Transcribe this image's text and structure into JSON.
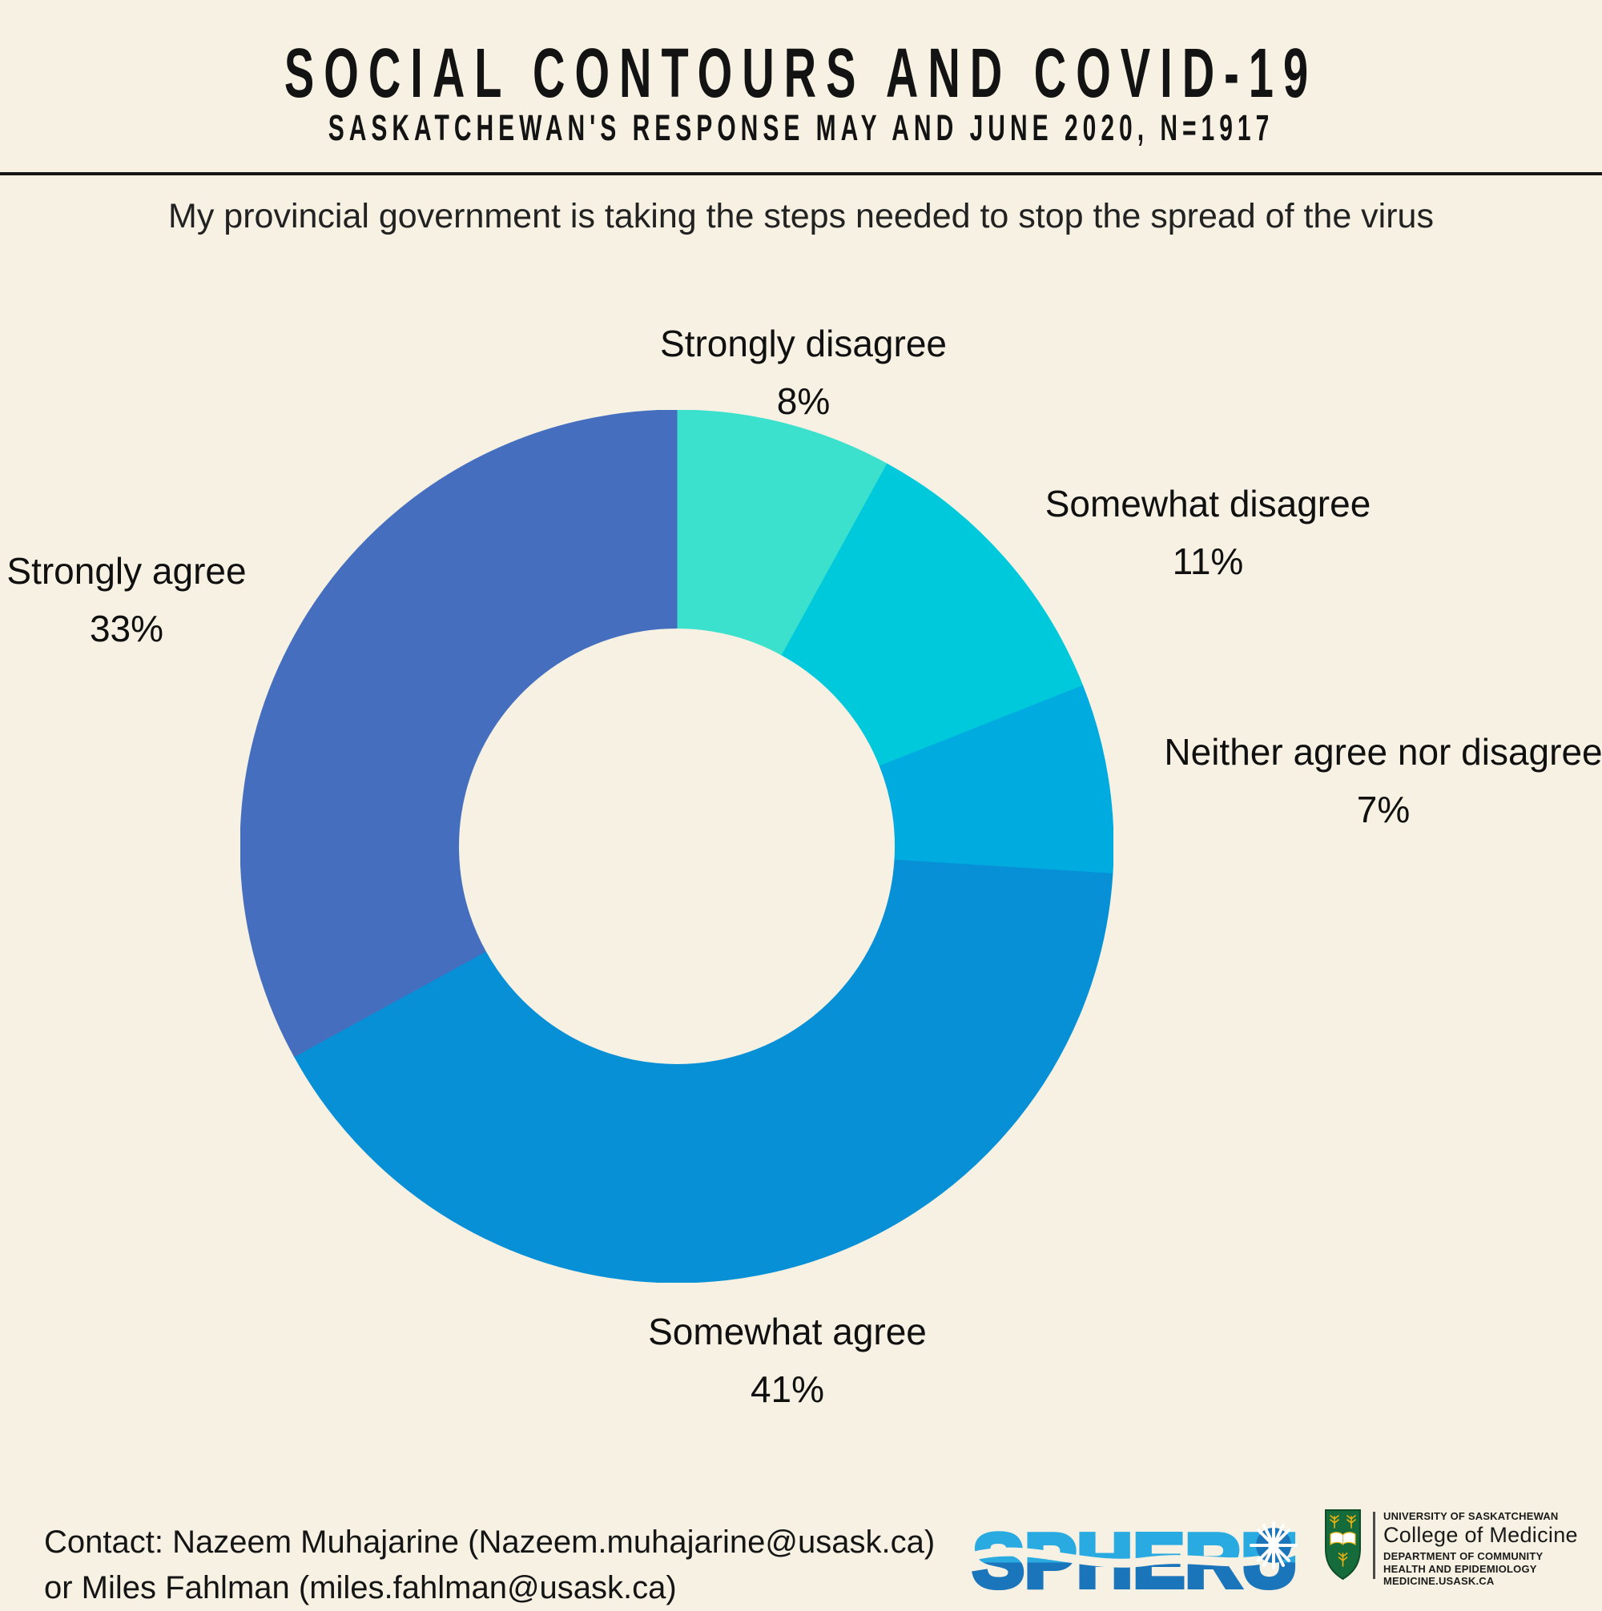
{
  "header": {
    "title": "SOCIAL CONTOURS AND COVID-19",
    "subtitle": "SASKATCHEWAN'S RESPONSE MAY AND JUNE 2020, N=1917"
  },
  "question": "My provincial government is taking the steps needed to stop the spread of the virus",
  "chart_data": {
    "type": "pie",
    "variant": "donut",
    "title": "My provincial government is taking the steps needed to stop the spread of the virus",
    "units": "percent of respondents",
    "n": 1917,
    "start_angle_deg": 0,
    "direction": "clockwise",
    "inner_radius_ratio": 0.5,
    "legend_position": "labels-around-chart",
    "segments": [
      {
        "label": "Strongly disagree",
        "value_pct": 8,
        "pct_label": "8%",
        "color": "#3CE1CE"
      },
      {
        "label": "Somewhat disagree",
        "value_pct": 11,
        "pct_label": "11%",
        "color": "#00C9DC"
      },
      {
        "label": "Neither agree nor disagree",
        "value_pct": 7,
        "pct_label": "7%",
        "color": "#00ABDF"
      },
      {
        "label": "Somewhat agree",
        "value_pct": 41,
        "pct_label": "41%",
        "color": "#0890D6"
      },
      {
        "label": "Strongly agree",
        "value_pct": 33,
        "pct_label": "33%",
        "color": "#456FBE"
      }
    ]
  },
  "footer": {
    "contact_line1": "Contact: Nazeem Muhajarine (Nazeem.muhajarine@usask.ca)",
    "contact_line2": "or Miles Fahlman (miles.fahlman@usask.ca)",
    "spheru_logo_text": "SPHERU",
    "university": {
      "line1": "UNIVERSITY OF SASKATCHEWAN",
      "line2": "College of Medicine",
      "line3": "DEPARTMENT OF COMMUNITY",
      "line4": "HEALTH AND EPIDEMIOLOGY",
      "line5": "MEDICINE.USASK.CA"
    }
  },
  "colors": {
    "background": "#F6F1E3",
    "heading_text": "#141414",
    "rule": "#161616",
    "spheru_light_blue": "#29ABE2",
    "spheru_dark_blue": "#1B75BB",
    "shield_green": "#156B3A",
    "shield_gold": "#EDB211",
    "divider_gray": "#4A4A4A"
  }
}
